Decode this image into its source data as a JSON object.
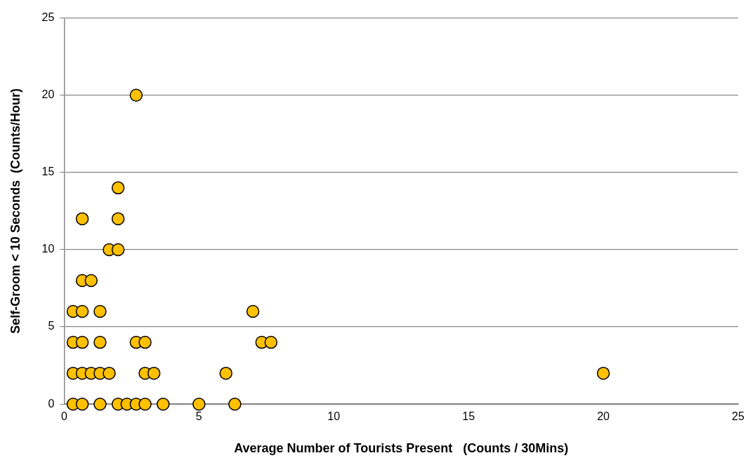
{
  "chart_data": {
    "type": "scatter",
    "xlabel": "Average Number of Tourists Present   (Counts / 30Mins)",
    "ylabel": "Self-Groom < 10 Seconds  (Counts/Hour)",
    "x": [
      2.67,
      2,
      0.67,
      2,
      1.67,
      2,
      0.67,
      1,
      0.33,
      0.67,
      1.33,
      7,
      0.33,
      0.67,
      1.33,
      2.67,
      3,
      7.33,
      7.67,
      0.33,
      0.67,
      1,
      1.33,
      1.67,
      3,
      3.33,
      6,
      20,
      0.33,
      0.67,
      1.33,
      2,
      2.33,
      2.67,
      3,
      3.67,
      5,
      6.33
    ],
    "values": [
      20,
      14,
      12,
      12,
      10,
      10,
      8,
      8,
      6,
      6,
      6,
      6,
      4,
      4,
      4,
      4,
      4,
      4,
      4,
      2,
      2,
      2,
      2,
      2,
      2,
      2,
      2,
      2,
      0,
      0,
      0,
      0,
      0,
      0,
      0,
      0,
      0,
      0
    ],
    "color": "#ffc000",
    "marker": "circle",
    "xlim": [
      0,
      25
    ],
    "ylim": [
      0,
      25
    ],
    "xticks": [
      0,
      5,
      10,
      15,
      20,
      25
    ],
    "yticks": [
      0,
      5,
      10,
      15,
      20,
      25
    ],
    "grid": "y"
  }
}
